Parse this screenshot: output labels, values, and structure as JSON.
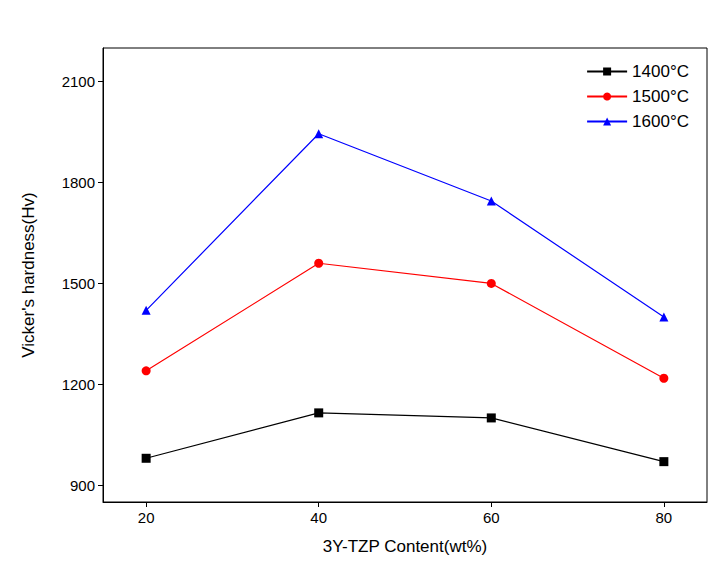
{
  "chart_data": {
    "type": "line",
    "x_label": "3Y-TZP Content(wt%)",
    "y_label": "Vicker's hardness(Hv)",
    "x": [
      20,
      40,
      60,
      80
    ],
    "xlim": [
      15,
      85
    ],
    "xticks": [
      20,
      40,
      60,
      80
    ],
    "ylim": [
      850,
      2200
    ],
    "yticks": [
      900,
      1200,
      1500,
      1800,
      2100
    ],
    "grid": false,
    "legend": "upper right",
    "series": [
      {
        "name": "1400°C",
        "color": "#000000",
        "marker": "square",
        "values": [
          980,
          1115,
          1100,
          970
        ]
      },
      {
        "name": "1500°C",
        "color": "#ff0000",
        "marker": "circle",
        "values": [
          1240,
          1560,
          1500,
          1218
        ]
      },
      {
        "name": "1600°C",
        "color": "#0000ff",
        "marker": "triangle",
        "values": [
          1420,
          1945,
          1745,
          1400
        ]
      }
    ]
  }
}
